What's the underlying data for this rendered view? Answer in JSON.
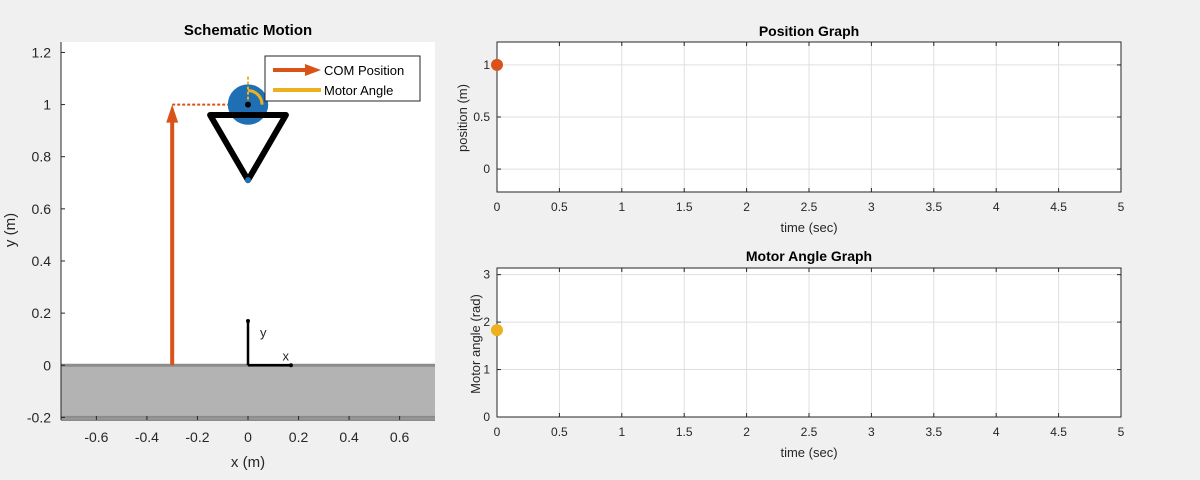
{
  "chart_data": [
    {
      "id": "schematic",
      "type": "scatter",
      "title": "Schematic Motion",
      "xlabel": "x (m)",
      "ylabel": "y (m)",
      "xlim": [
        -0.74,
        0.74
      ],
      "ylim": [
        -0.21,
        1.24
      ],
      "xticks": [
        -0.6,
        -0.4,
        -0.2,
        0,
        0.2,
        0.4,
        0.6
      ],
      "xtick_labels": [
        "-0.6",
        "-0.4",
        "-0.2",
        "0",
        "0.2",
        "0.4",
        "0.6"
      ],
      "yticks": [
        -0.2,
        0,
        0.2,
        0.4,
        0.6,
        0.8,
        1,
        1.2
      ],
      "ytick_labels": [
        "-0.2",
        "0",
        "0.2",
        "0.4",
        "0.6",
        "0.8",
        "1",
        "1.2"
      ],
      "grid": false,
      "ground": {
        "y_top": 0,
        "y_bottom": -0.2,
        "color": "#b3b3b3"
      },
      "body": {
        "center": [
          0,
          1
        ],
        "radius": 0.08,
        "color": "#1f6fb5",
        "frame": [
          [
            -0.15,
            0.96
          ],
          [
            0,
            0.71
          ],
          [
            0.15,
            0.96
          ]
        ],
        "foot": [
          0,
          0.71
        ]
      },
      "com_arrow": {
        "x": -0.3,
        "y_from": 0,
        "y_to": 1,
        "color": "#d95319"
      },
      "com_dash": {
        "x_from": -0.3,
        "x_to": 0,
        "y": 1
      },
      "motor_angle_indicator": {
        "center": [
          0,
          1
        ],
        "radius": 0.04,
        "color": "#edb120"
      },
      "axes_indicator": {
        "origin": [
          0,
          0
        ],
        "x_end": [
          0.17,
          0
        ],
        "y_end": [
          0,
          0.17
        ],
        "x_label": "x",
        "y_label": "y"
      },
      "legend": {
        "placement": "top-right",
        "entries": [
          {
            "name": "COM Position",
            "color": "#d95319",
            "style": "arrow"
          },
          {
            "name": "Motor Angle",
            "color": "#edb120",
            "style": "line"
          }
        ]
      }
    },
    {
      "id": "position",
      "type": "scatter",
      "title": "Position Graph",
      "xlabel": "time (sec)",
      "ylabel": "position (m)",
      "xlim": [
        0,
        5
      ],
      "ylim": [
        -0.22,
        1.22
      ],
      "xticks": [
        0,
        0.5,
        1,
        1.5,
        2,
        2.5,
        3,
        3.5,
        4,
        4.5,
        5
      ],
      "xtick_labels": [
        "0",
        "0.5",
        "1",
        "1.5",
        "2",
        "2.5",
        "3",
        "3.5",
        "4",
        "4.5",
        "5"
      ],
      "yticks": [
        0,
        0.5,
        1
      ],
      "ytick_labels": [
        "0",
        "0.5",
        "1"
      ],
      "grid": true,
      "series": [
        {
          "x": [
            0
          ],
          "y": [
            1
          ],
          "color": "#d95319"
        }
      ]
    },
    {
      "id": "motor",
      "type": "scatter",
      "title": "Motor Angle Graph",
      "xlabel": "time (sec)",
      "ylabel": "Motor angle (rad)",
      "xlim": [
        0,
        5
      ],
      "ylim": [
        0,
        3.14
      ],
      "xticks": [
        0,
        0.5,
        1,
        1.5,
        2,
        2.5,
        3,
        3.5,
        4,
        4.5,
        5
      ],
      "xtick_labels": [
        "0",
        "0.5",
        "1",
        "1.5",
        "2",
        "2.5",
        "3",
        "3.5",
        "4",
        "4.5",
        "5"
      ],
      "yticks": [
        0,
        1,
        2,
        3
      ],
      "ytick_labels": [
        "0",
        "1",
        "2",
        "3"
      ],
      "grid": true,
      "series": [
        {
          "x": [
            0
          ],
          "y": [
            1.83
          ],
          "color": "#edb120"
        }
      ]
    }
  ]
}
